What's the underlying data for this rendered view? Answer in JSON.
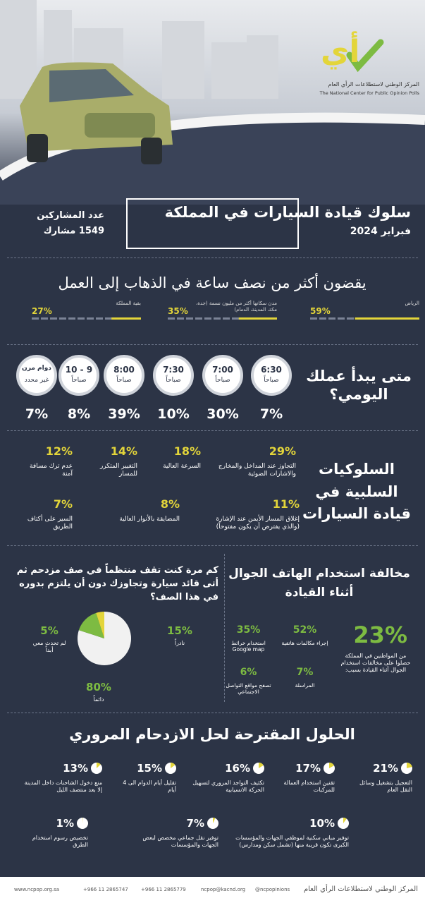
{
  "header": {
    "logo_mark": "أي",
    "org_ar": "المركز الوطني لاستطلاعات الرأي العام",
    "org_en": "The National Center for Public Opinion Polls",
    "title": "سلوك قيادة السيارات في المملكة",
    "date": "فبراير 2024",
    "participants_label": "عدد المشاركين",
    "participants": "1549 مشارك"
  },
  "commute": {
    "title": "يقضون أكثر من نصف ساعة في الذهاب إلى العمل",
    "items": [
      {
        "place": "الرياض",
        "value": 59,
        "label": "59%"
      },
      {
        "place": "مدن سكانها أكثر من مليون نسمة (جدة، مكة، المدينة، الدمام)",
        "value": 35,
        "label": "35%"
      },
      {
        "place": "بقية المملكة",
        "value": 27,
        "label": "27%"
      }
    ]
  },
  "start_time": {
    "title": "متى يبدأ عملك اليومي؟",
    "items": [
      {
        "time": "6:30",
        "period": "صباحاً",
        "label": "7%"
      },
      {
        "time": "7:00",
        "period": "صباحاً",
        "label": "30%"
      },
      {
        "time": "7:30",
        "period": "صباحاً",
        "label": "10%"
      },
      {
        "time": "8:00",
        "period": "صباحاً",
        "label": "39%"
      },
      {
        "time": "9 - 10",
        "period": "صباحاً",
        "label": "8%"
      },
      {
        "time": "دوام مرن",
        "period": "غير محدد",
        "label": "7%"
      }
    ]
  },
  "negative": {
    "title": "السلوكيات السلبية في قيادة السيارات",
    "items": [
      {
        "label": "29%",
        "text": "التجاوز عند المداخل والمخارج والاشارات الضوئية"
      },
      {
        "label": "18%",
        "text": "السرعة العالية"
      },
      {
        "label": "14%",
        "text": "التغيير المتكرر للمسار"
      },
      {
        "label": "12%",
        "text": "عدم ترك مسافة آمنة"
      },
      {
        "label": "11%",
        "text": "إغلاق المسار الأيمن عند الإشارة (والذي يفترض أن يكون مفتوحاً)"
      },
      {
        "label": "8%",
        "text": "المضايقة بالأنوار العالية"
      },
      {
        "label": "7%",
        "text": "السير على أكتاف الطريق"
      }
    ]
  },
  "queue": {
    "question": "كم مرة كنت تقف منتظماً في صف مزدحم ثم أتى قائد سيارة وتجاوزك دون أن يلتزم بدوره في هذا الصف؟",
    "slices": [
      {
        "name": "دائماً",
        "value": 80,
        "label": "80%",
        "color": "#f1f1f1"
      },
      {
        "name": "نادراً",
        "value": 15,
        "label": "15%",
        "color": "#7dbb42"
      },
      {
        "name": "لم تحدث معي أبداً",
        "value": 5,
        "label": "5%",
        "color": "#e3d53a"
      }
    ]
  },
  "phone": {
    "title": "مخالفة استخدام الهاتف الجوال أثناء القيادة",
    "main_label": "23%",
    "main_text": "من المواطنين في المملكة حصلوا على مخالفات استخدام الجوال أثناء القيادة بسبب:",
    "items": [
      {
        "label": "52%",
        "text": "إجراء مكالمات هاتفية"
      },
      {
        "label": "35%",
        "text": "استخدام خرائط Google map"
      },
      {
        "label": "7%",
        "text": "المراسلة"
      },
      {
        "label": "6%",
        "text": "تصفح مواقع التواصل الاجتماعي"
      }
    ]
  },
  "solutions": {
    "title": "الحلول المقترحة لحل الازدحام المروري",
    "items": [
      {
        "value": 21,
        "label": "21%",
        "text": "التعجيل بتشغيل وسائل النقل العام"
      },
      {
        "value": 17,
        "label": "17%",
        "text": "تقنين استخدام العمالة للمركبات"
      },
      {
        "value": 16,
        "label": "16%",
        "text": "تكثيف التواجد المروري لتسهيل الحركة الانسيابية"
      },
      {
        "value": 15,
        "label": "15%",
        "text": "تقليل أيام الدوام الى 4 أيام"
      },
      {
        "value": 13,
        "label": "13%",
        "text": "منع دخول الشاحنات داخل المدينة إلا بعد منتصف الليل"
      },
      {
        "value": 10,
        "label": "10%",
        "text": "توفير مباني سكنية لموظفي الجهات والمؤسسات الكبرى تكون قريبة منها (تشمل سكن ومدارس)"
      },
      {
        "value": 7,
        "label": "7%",
        "text": "توفير نقل جماعي مخصص لبعض الجهات والمؤسسات"
      },
      {
        "value": 1,
        "label": "1%",
        "text": "تخصيص رسوم استخدام الطرق"
      }
    ]
  },
  "footer": {
    "org": "المركز الوطني لاستطلاعات الرأي العام",
    "twitter": "@ncpopinions",
    "email": "ncpop@kacnd.org",
    "phone1": "+966 11 2865779",
    "phone2": "+966 11 2865747",
    "website": "www.ncpop.org.sa"
  }
}
